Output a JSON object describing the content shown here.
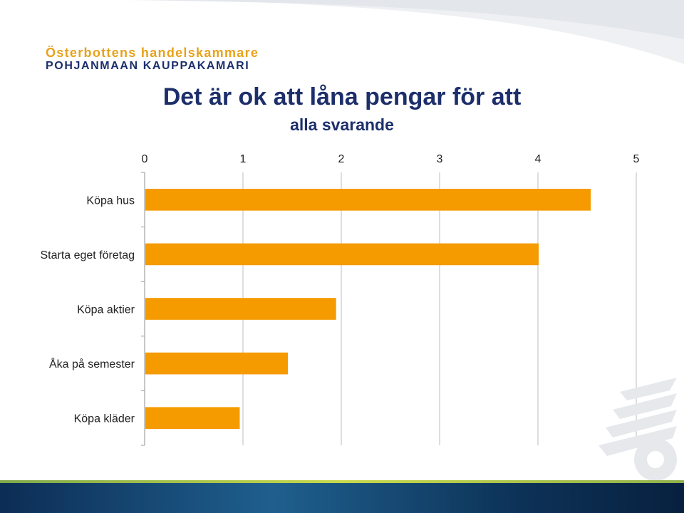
{
  "header": {
    "logo_line_1": "Österbottens handelskammare",
    "logo_line_2": "POHJANMAAN KAUPPAKAMARI",
    "title": "Det är ok att låna pengar för att",
    "subtitle": "alla svarande"
  },
  "colors": {
    "bar": "#f59b00",
    "title": "#1d2f6b",
    "gridline": "#c8c8c8",
    "logo_gold": "#e7a21a",
    "logo_navy": "#1d2f6b"
  },
  "chart_data": {
    "type": "bar",
    "orientation": "horizontal",
    "title": "Det är ok att låna pengar för att",
    "subtitle": "alla svarande",
    "categories": [
      "Köpa hus",
      "Starta eget företag",
      "Köpa aktier",
      "Åka på semester",
      "Köpa kläder"
    ],
    "values": [
      4.53,
      4.0,
      1.94,
      1.45,
      0.96
    ],
    "xlim": [
      0,
      5
    ],
    "x_ticks": [
      "0",
      "1",
      "2",
      "3",
      "4",
      "5"
    ],
    "x_axis_position": "top",
    "grid": true,
    "legend": "none"
  }
}
